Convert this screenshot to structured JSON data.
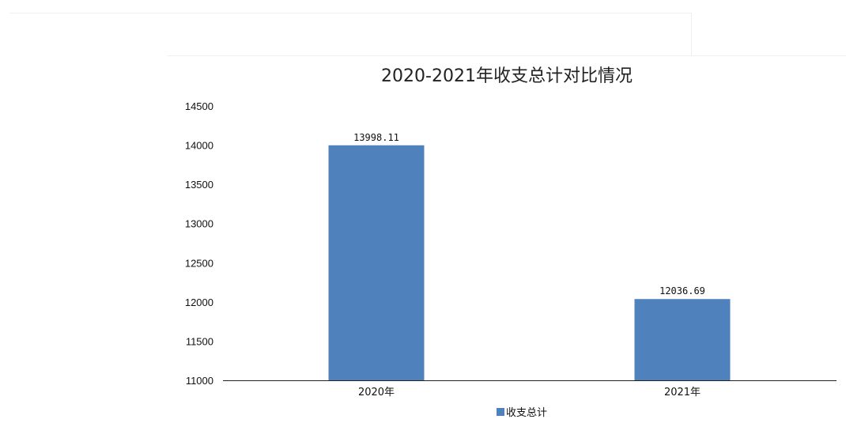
{
  "chart_data": {
    "type": "bar",
    "title": "2020-2021年收支总计对比情况",
    "categories": [
      "2020年",
      "2021年"
    ],
    "series": [
      {
        "name": "收支总计",
        "values": [
          13998.11,
          12036.69
        ],
        "value_labels": [
          "13998.11",
          "12036.69"
        ],
        "color": "#4f81bd"
      }
    ],
    "ylim": [
      11000,
      14500
    ],
    "yticks": [
      14500,
      14000,
      13500,
      13000,
      12500,
      12000,
      11500,
      11000
    ],
    "xlabel": "",
    "ylabel": "",
    "grid": false,
    "legend": "bottom"
  },
  "colors": {
    "bar": "#4f81bd",
    "axis": "#222222"
  }
}
